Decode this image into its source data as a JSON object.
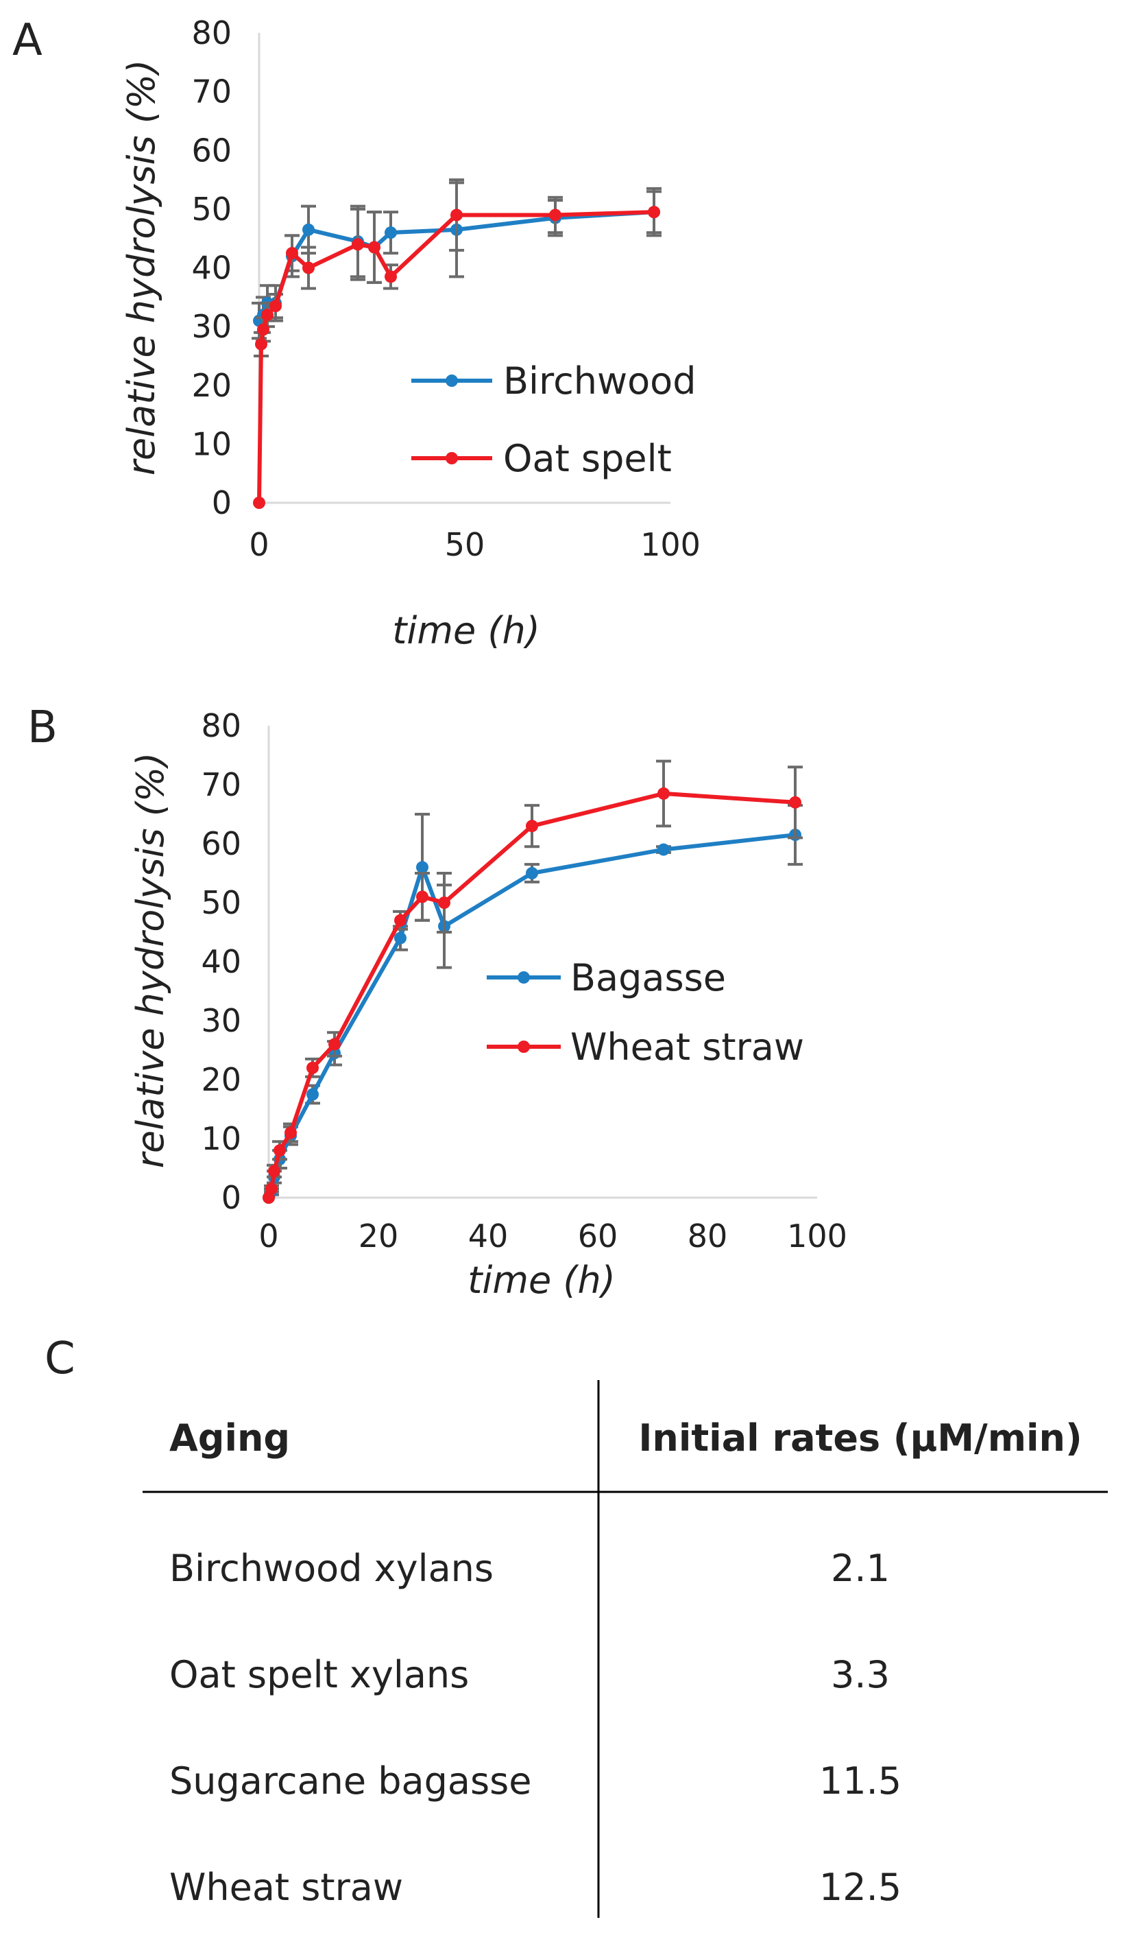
{
  "chart_data": [
    {
      "panel": "A",
      "type": "line",
      "xlabel": "time (h)",
      "ylabel": "relative hydrolysis (%)",
      "xlim": [
        0,
        100
      ],
      "ylim": [
        0,
        80
      ],
      "xticks": [
        0,
        50,
        100
      ],
      "yticks": [
        0,
        10,
        20,
        30,
        40,
        50,
        60,
        70,
        80
      ],
      "grid": false,
      "legend_position": "center-right",
      "series": [
        {
          "name": "Birchwood",
          "color": "#1f7fc4",
          "x": [
            0,
            1,
            2,
            4,
            8,
            12,
            24,
            28,
            32,
            48,
            72,
            96
          ],
          "y": [
            31,
            32,
            34,
            34,
            42,
            46.5,
            44.5,
            43.5,
            46,
            46.5,
            48.5,
            49.5
          ],
          "err": [
            3,
            3,
            3,
            3,
            3.5,
            4,
            6,
            6,
            3.5,
            8,
            3,
            3.5
          ]
        },
        {
          "name": "Oat spelt",
          "color": "#ee1c24",
          "x": [
            0,
            0.5,
            1,
            2,
            4,
            8,
            12,
            24,
            28,
            32,
            48,
            72,
            96
          ],
          "y": [
            0,
            27,
            29.5,
            32,
            33.5,
            42.5,
            40,
            44,
            43.5,
            38.5,
            49,
            49,
            49.5
          ],
          "err": [
            0,
            2,
            2,
            2,
            2,
            3,
            3.5,
            6,
            6,
            2,
            6,
            3,
            4
          ]
        }
      ]
    },
    {
      "panel": "B",
      "type": "line",
      "xlabel": "time (h)",
      "ylabel": "relative hydrolysis (%)",
      "xlim": [
        0,
        100
      ],
      "ylim": [
        0,
        80
      ],
      "xticks": [
        0,
        20,
        40,
        60,
        80,
        100
      ],
      "yticks": [
        0,
        10,
        20,
        30,
        40,
        50,
        60,
        70,
        80
      ],
      "grid": false,
      "legend_position": "center-right",
      "series": [
        {
          "name": "Bagasse",
          "color": "#1f7fc4",
          "x": [
            0,
            0.5,
            1,
            2,
            4,
            8,
            12,
            24,
            28,
            32,
            48,
            72,
            96
          ],
          "y": [
            0,
            1,
            3.5,
            6.5,
            10.5,
            17.5,
            24.5,
            44,
            56,
            46,
            55,
            59,
            61.5
          ],
          "err": [
            0,
            0.5,
            1,
            1.5,
            1.5,
            1.5,
            2,
            2,
            9,
            7,
            1.5,
            0.5,
            5
          ]
        },
        {
          "name": "Wheat straw",
          "color": "#ee1c24",
          "x": [
            0,
            0.5,
            1,
            2,
            4,
            8,
            12,
            24,
            28,
            32,
            48,
            72,
            96
          ],
          "y": [
            0,
            1.5,
            4.5,
            8,
            11,
            22,
            26,
            47,
            51,
            50,
            63,
            68.5,
            67
          ],
          "err": [
            0,
            0.5,
            1,
            1.5,
            1.5,
            1.5,
            2,
            1.5,
            4,
            5,
            3.5,
            5.5,
            6
          ]
        }
      ]
    },
    {
      "panel": "C",
      "type": "table",
      "columns": [
        "Aging",
        "Initial rates (µM/min)"
      ],
      "rows": [
        [
          "Birchwood xylans",
          "2.1"
        ],
        [
          "Oat spelt xylans",
          "3.3"
        ],
        [
          "Sugarcane bagasse",
          "11.5"
        ],
        [
          "Wheat straw",
          "12.5"
        ]
      ]
    }
  ]
}
